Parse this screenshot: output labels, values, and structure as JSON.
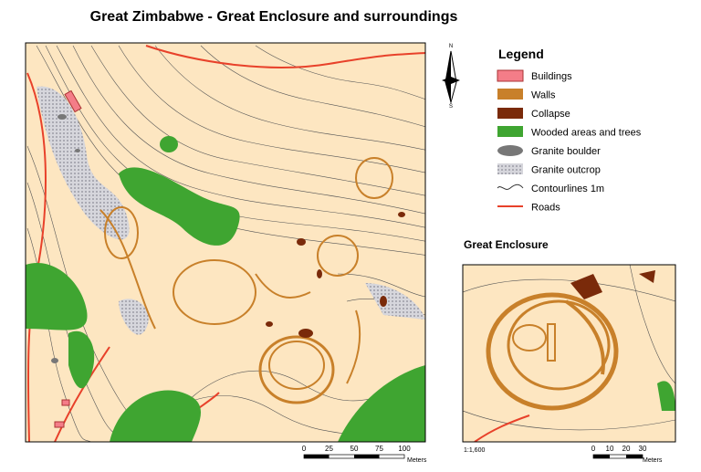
{
  "title": "Great Zimbabwe - Great Enclosure and surroundings",
  "north_arrow": {
    "n": "N",
    "s": "S"
  },
  "legend": {
    "title": "Legend",
    "items": [
      "Buildings",
      "Walls",
      "Collapse",
      "Wooded areas and trees",
      "Granite boulder",
      "Granite outcrop",
      "Contourlines 1m",
      "Roads"
    ]
  },
  "main_map": {
    "scale_bar": {
      "labels": [
        0,
        25,
        50,
        75,
        100
      ],
      "unit": "Meters"
    }
  },
  "inset": {
    "title": "Great Enclosure",
    "scale": "1:1,600",
    "scale_bar": {
      "labels": [
        0,
        10,
        20,
        30
      ],
      "unit": "Meters"
    }
  }
}
